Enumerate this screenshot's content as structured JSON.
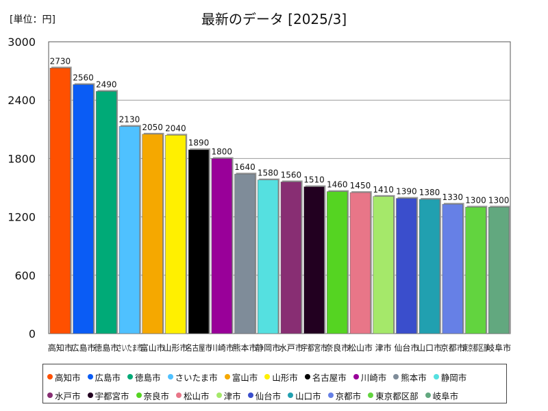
{
  "header": {
    "unit": "[単位：円]",
    "title": "最新のデータ [2025/3]"
  },
  "chart_data": {
    "type": "bar",
    "title": "最新のデータ [2025/3]",
    "ylabel": "[単位：円]",
    "ylim": [
      0,
      3000
    ],
    "yticks": [
      0,
      600,
      1200,
      1800,
      2400,
      3000
    ],
    "categories": [
      "高知市",
      "広島市",
      "徳島市",
      "さいたま市",
      "富山市",
      "山形市",
      "名古屋市",
      "川崎市",
      "熊本市",
      "静岡市",
      "水戸市",
      "宇都宮市",
      "奈良市",
      "松山市",
      "津市",
      "仙台市",
      "山口市",
      "京都市",
      "東京都区部",
      "岐阜市"
    ],
    "values": [
      2730,
      2560,
      2490,
      2130,
      2050,
      2040,
      1890,
      1800,
      1640,
      1580,
      1560,
      1510,
      1460,
      1450,
      1410,
      1390,
      1380,
      1330,
      1300,
      1300
    ],
    "colors": [
      "#ff5000",
      "#0a5cf5",
      "#00aa77",
      "#4fc1ff",
      "#f5a800",
      "#fff000",
      "#000000",
      "#990099",
      "#7f8c99",
      "#55e0e0",
      "#882e73",
      "#220020",
      "#55d422",
      "#e87688",
      "#a5e86a",
      "#3a4ecc",
      "#21a0b0",
      "#6680e6",
      "#62d43f",
      "#62a87f"
    ]
  }
}
